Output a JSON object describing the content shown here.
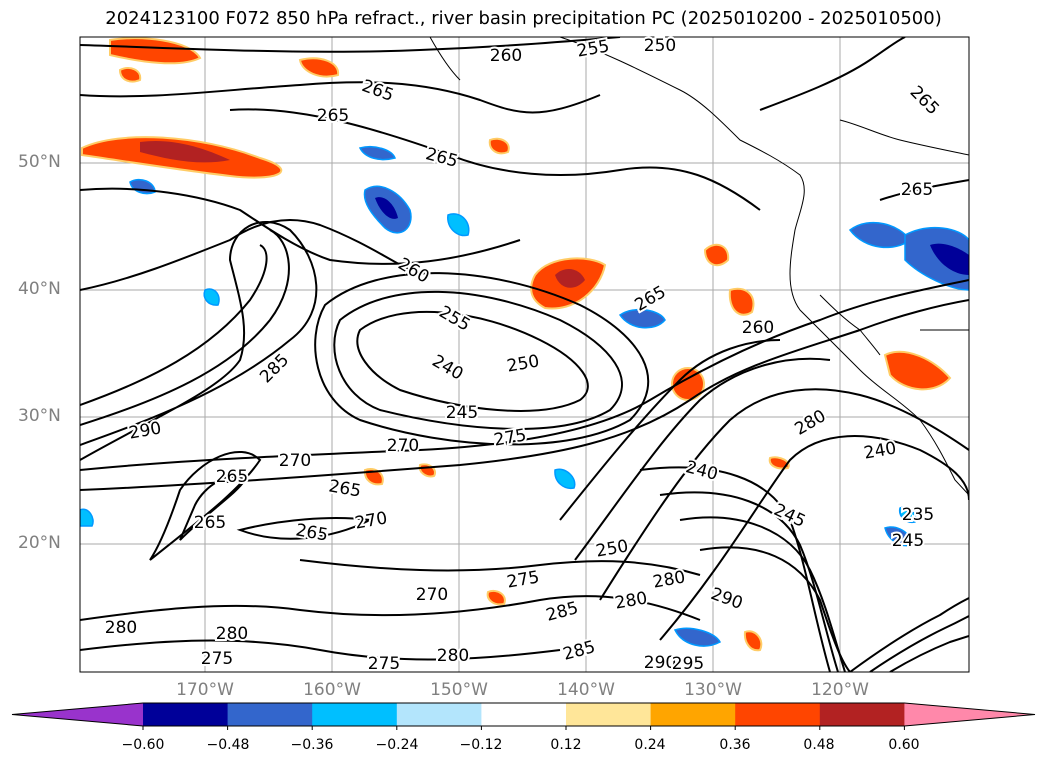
{
  "title": "2024123100 F072 850 hPa refract., river basin precipitation PC (2025010200 - 2025010500)",
  "lat_labels": [
    "50°N",
    "40°N",
    "30°N",
    "20°N"
  ],
  "lon_labels": [
    "170°W",
    "160°W",
    "150°W",
    "140°W",
    "130°W",
    "120°W"
  ],
  "colorbar": {
    "ticks": [
      "−0.60",
      "−0.48",
      "−0.36",
      "−0.24",
      "−0.12",
      "0.12",
      "0.24",
      "0.36",
      "0.48",
      "0.60"
    ],
    "colors": [
      "#9933cc",
      "#000099",
      "#3366cc",
      "#00bfff",
      "#b3e5fc",
      "#ffffff",
      "#ffe699",
      "#ffa500",
      "#ff4500",
      "#b22222",
      "#ff88aa"
    ]
  },
  "contour_labels": [
    "260",
    "255",
    "250",
    "265",
    "265",
    "265",
    "265",
    "265",
    "260",
    "255",
    "240",
    "250",
    "245",
    "275",
    "270",
    "285",
    "290",
    "270",
    "265",
    "265",
    "265",
    "270",
    "265",
    "260",
    "280",
    "240",
    "235",
    "245",
    "240",
    "245",
    "250",
    "275",
    "280",
    "280",
    "285",
    "290",
    "290",
    "295",
    "270",
    "280",
    "280",
    "275",
    "275",
    "280",
    "285",
    "265"
  ]
}
